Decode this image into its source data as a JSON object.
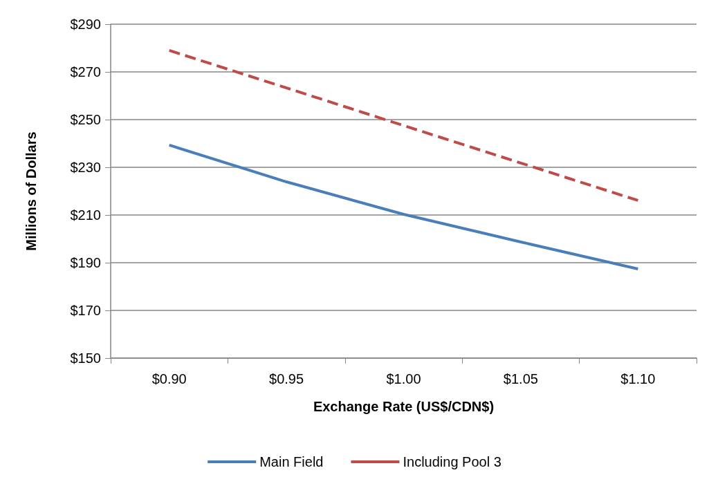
{
  "chart_data": {
    "type": "line",
    "xlabel": "Exchange Rate (US$/CDN$)",
    "ylabel": "Millions of Dollars",
    "categories": [
      "$0.90",
      "$0.95",
      "$1.00",
      "$1.05",
      "$1.10"
    ],
    "series": [
      {
        "name": "Main Field",
        "color": "#4a7ebb",
        "values": [
          239.3,
          223.9,
          210.3,
          198.7,
          187.4
        ],
        "line_style": "solid"
      },
      {
        "name": "Including Pool 3",
        "color": "#be4b48",
        "values": [
          279,
          263.3,
          247.5,
          231.8,
          216.1
        ],
        "line_style": "dashed"
      }
    ],
    "ylim": [
      150,
      290
    ],
    "yticks": [
      {
        "value": 150,
        "label": "$150"
      },
      {
        "value": 170,
        "label": "$170"
      },
      {
        "value": 190,
        "label": "$190"
      },
      {
        "value": 210,
        "label": "$210"
      },
      {
        "value": 230,
        "label": "$230"
      },
      {
        "value": 250,
        "label": "$250"
      },
      {
        "value": 270,
        "label": "$270"
      },
      {
        "value": 290,
        "label": "$290"
      }
    ],
    "grid": "y",
    "legend": "bottom",
    "marker": "none"
  }
}
